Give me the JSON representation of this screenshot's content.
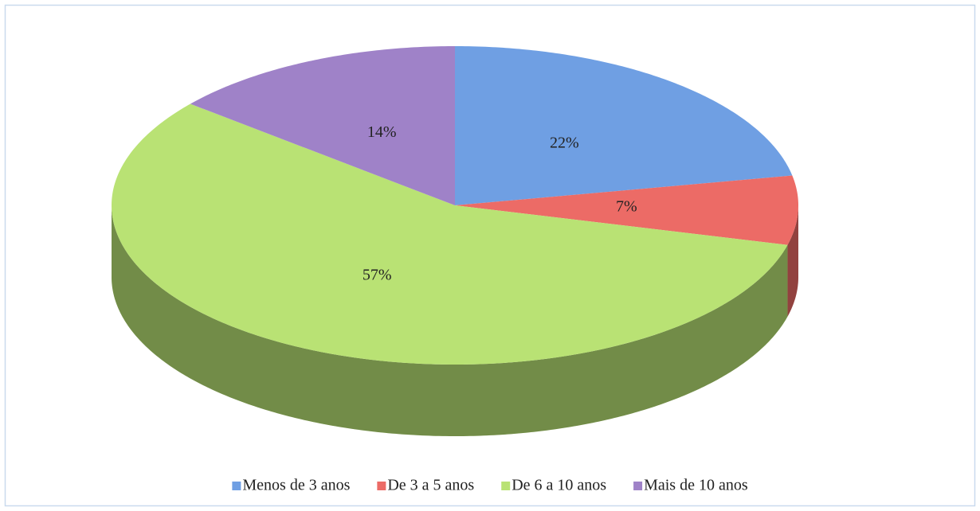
{
  "chart_data": {
    "type": "pie",
    "categories": [
      "Menos de 3 anos",
      "De 3 a 5 anos",
      "De 6 a 10 anos",
      "Mais de 10 anos"
    ],
    "values": [
      22,
      7,
      57,
      14
    ],
    "value_labels": [
      "22%",
      "7%",
      "57%",
      "14%"
    ],
    "colors": [
      "#6f9fe3",
      "#ec6b66",
      "#b9e274",
      "#9f82c8"
    ],
    "legend": "bottom"
  }
}
